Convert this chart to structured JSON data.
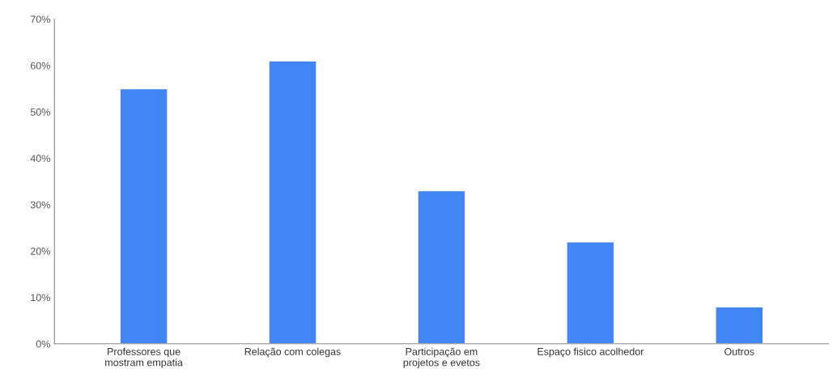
{
  "chart_data": {
    "type": "bar",
    "categories": [
      "Professores que\nmostram empatia",
      "Relação com colegas",
      "Participação em\nprojetos e evetos",
      "Espaço fisico acolhedor",
      "Outros"
    ],
    "values": [
      55,
      61,
      33,
      22,
      8
    ],
    "color": "#4285f4",
    "ylim": [
      0,
      70
    ],
    "yticks": [
      {
        "value": 0,
        "label": "0%"
      },
      {
        "value": 10,
        "label": "10%"
      },
      {
        "value": 20,
        "label": "20%"
      },
      {
        "value": 30,
        "label": "30%"
      },
      {
        "value": 40,
        "label": "40%"
      },
      {
        "value": 50,
        "label": "50%"
      },
      {
        "value": 60,
        "label": "60%"
      },
      {
        "value": 70,
        "label": "70%"
      }
    ],
    "grid": false,
    "legend": false
  }
}
